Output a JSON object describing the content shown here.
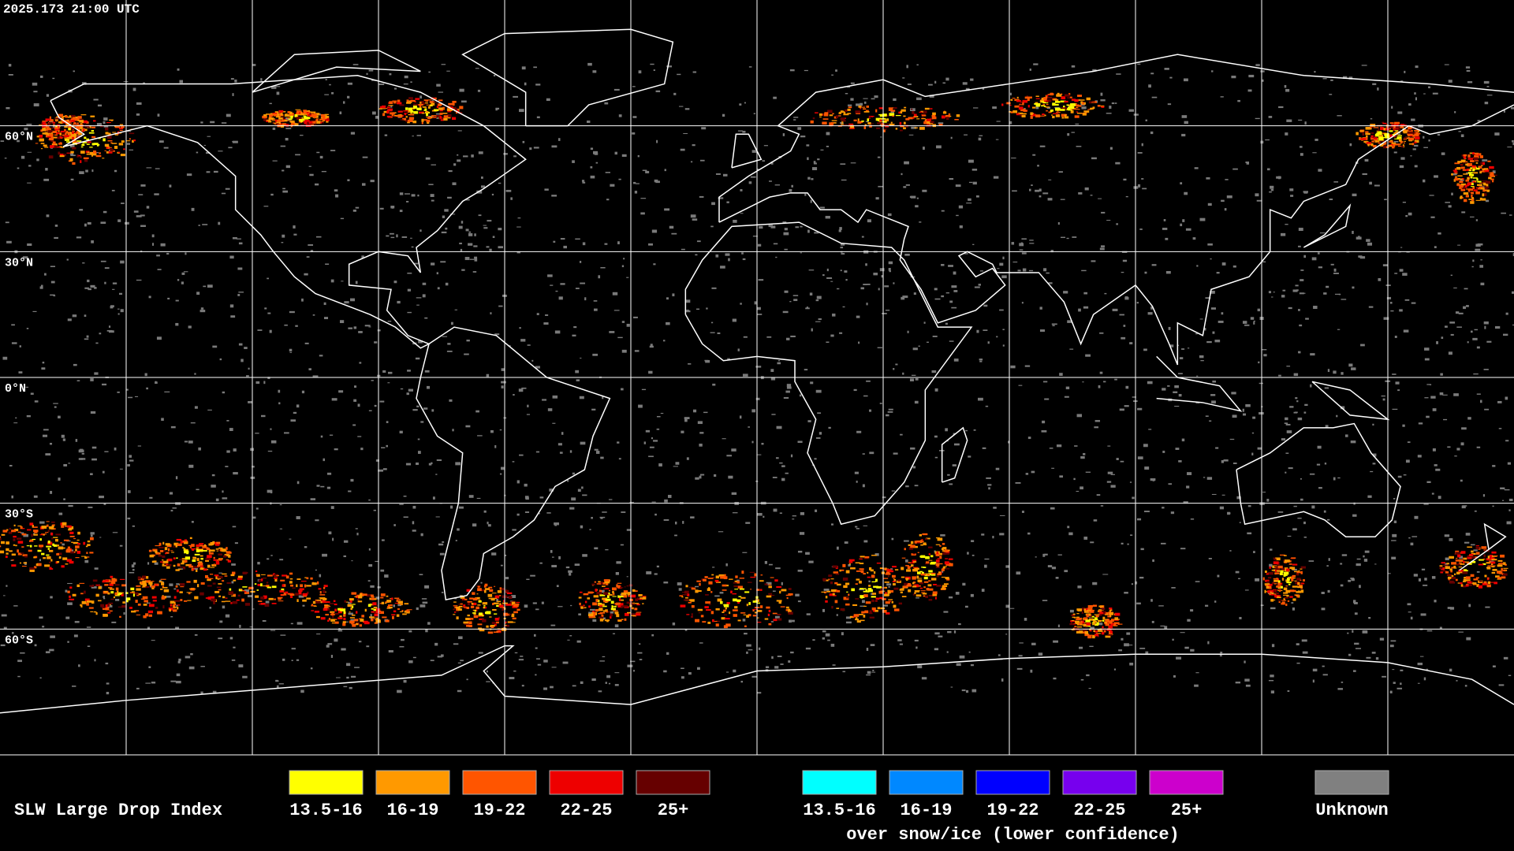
{
  "header": {
    "timestamp": "2025.173 21:00 UTC"
  },
  "map": {
    "latitude_labels": [
      "60°N",
      "30°N",
      "0°N",
      "30°S",
      "60°S"
    ]
  },
  "legend": {
    "title": "SLW Large Drop Index",
    "groups": [
      {
        "items": [
          {
            "label": "13.5-16",
            "color": "#ffff00"
          },
          {
            "label": "16-19",
            "color": "#ff9900"
          },
          {
            "label": "19-22",
            "color": "#ff5500"
          },
          {
            "label": "22-25",
            "color": "#ee0000"
          },
          {
            "label": "25+",
            "color": "#660000"
          }
        ]
      },
      {
        "items": [
          {
            "label": "13.5-16",
            "color": "#00ffff"
          },
          {
            "label": "16-19",
            "color": "#0088ff"
          },
          {
            "label": "19-22",
            "color": "#0000ff"
          },
          {
            "label": "22-25",
            "color": "#7700ee"
          },
          {
            "label": "25+",
            "color": "#cc00cc"
          }
        ],
        "caption": "over snow/ice (lower confidence)"
      },
      {
        "items": [
          {
            "label": "Unknown",
            "color": "#808080"
          }
        ]
      }
    ]
  }
}
